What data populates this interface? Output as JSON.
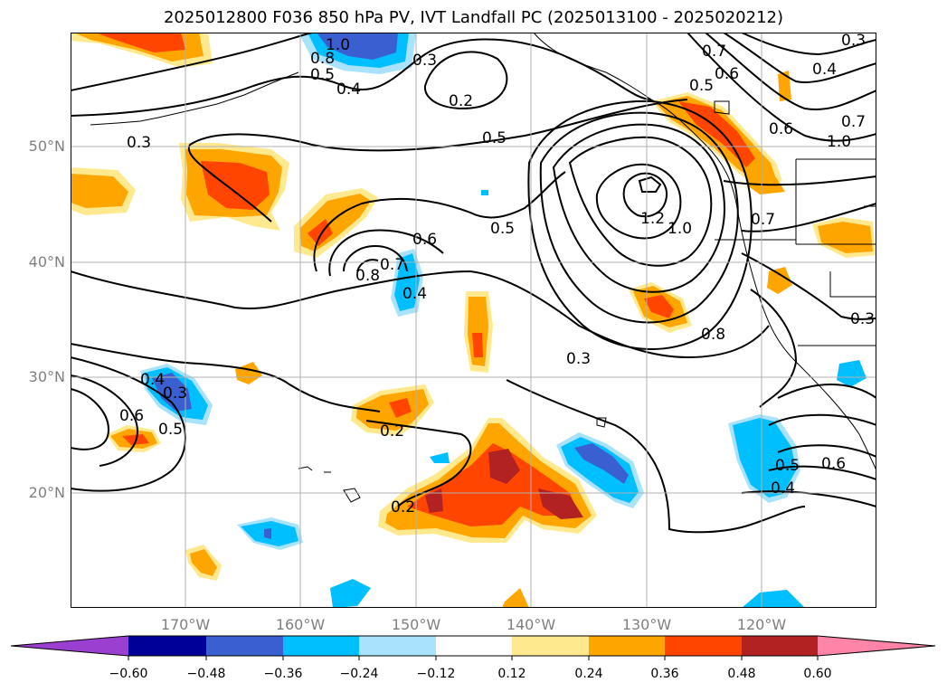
{
  "title": "2025012800 F036 850 hPa PV, IVT Landfall PC (2025013100 - 2025020212)",
  "map": {
    "lat_ticks": [
      "50°N",
      "40°N",
      "30°N",
      "20°N"
    ],
    "lon_ticks": [
      "170°W",
      "160°W",
      "150°W",
      "140°W",
      "130°W",
      "120°W"
    ],
    "contour_labels": [
      "1.0",
      "0.8",
      "0.5",
      "0.4",
      "0.3",
      "0.2",
      "0.7",
      "0.6",
      "0.5",
      "0.3",
      "0.5",
      "0.5",
      "0.6",
      "0.8",
      "0.7",
      "0.4",
      "1.2",
      "1.0",
      "0.8",
      "0.3",
      "0.2",
      "0.2",
      "0.3",
      "0.4",
      "0.6",
      "0.5",
      "0.5",
      "0.4",
      "0.6",
      "0.7",
      "0.6",
      "1.0",
      "0.3",
      "0.4",
      "0.7",
      "0.3"
    ],
    "colors": {
      "neg_060": "#9b3fd1",
      "neg_048": "#000099",
      "neg_036": "#3a5fd1",
      "neg_024": "#00bfff",
      "neg_012": "#a8e2fb",
      "zero": "#ffffff",
      "pos_012": "#ffe98f",
      "pos_024": "#ffa500",
      "pos_036": "#ff4500",
      "pos_048": "#b22222",
      "pos_060": "#ff85a8"
    }
  },
  "colorbar": {
    "ticks": [
      "−0.60",
      "−0.48",
      "−0.36",
      "−0.24",
      "−0.12",
      "0.12",
      "0.24",
      "0.36",
      "0.48",
      "0.60"
    ]
  }
}
